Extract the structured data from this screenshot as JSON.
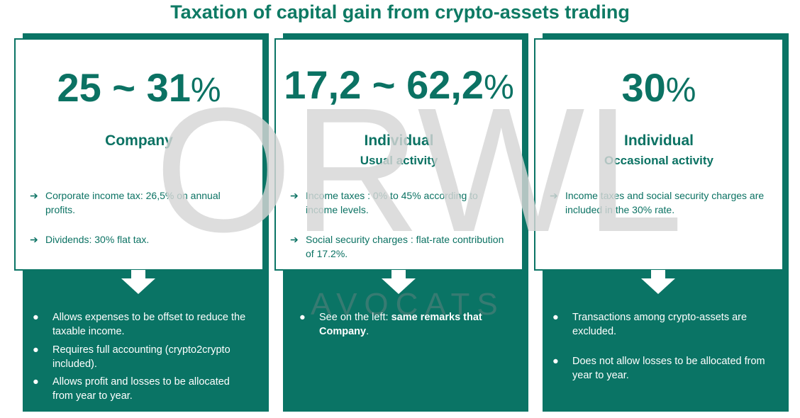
{
  "title": "Taxation of capital gain from crypto-assets trading",
  "colors": {
    "accent": "#0a7465",
    "watermark": "#d6d6d6"
  },
  "watermark": {
    "main": "ORWL",
    "sub": "AVOCATS"
  },
  "columns": [
    {
      "rate": "25 ~ 31",
      "rate_symbol": "%",
      "heading": "Company",
      "subheading": "",
      "card_bullets": [
        {
          "marker": "➔",
          "text": "Corporate income tax: 26,5% on annual profits."
        },
        {
          "marker": "➔",
          "text": "Dividends: 30% flat tax."
        }
      ],
      "bottom_bullets": [
        {
          "marker": "●",
          "text": "Allows expenses to be offset to reduce the taxable income."
        },
        {
          "marker": "●",
          "text": "Requires full accounting (crypto2crypto included)."
        },
        {
          "marker": "●",
          "text": "Allows profit and losses to be allocated from year to year."
        }
      ]
    },
    {
      "rate": "17,2 ~ 62,2",
      "rate_symbol": "%",
      "heading": "Individual",
      "subheading": "Usual activity",
      "card_bullets": [
        {
          "marker": "➔",
          "text": "Income taxes : 0% to 45% according to income levels."
        },
        {
          "marker": "➔",
          "text": "Social security charges : flat-rate contribution of 17.2%."
        }
      ],
      "bottom_bullets": [
        {
          "marker": "●",
          "text_plain": "See on the left: ",
          "text_bold": "same remarks that Company",
          "text_end": "."
        }
      ]
    },
    {
      "rate": "30",
      "rate_symbol": "%",
      "heading": "Individual",
      "subheading": "Occasional activity",
      "card_bullets": [
        {
          "marker": "➔",
          "text": "Income taxes and social security charges are included in the 30% rate."
        }
      ],
      "bottom_bullets": [
        {
          "marker": "●",
          "text": "Transactions among crypto-assets are excluded."
        },
        {
          "marker": "●",
          "text": "Does not allow losses to be allocated from year to year."
        }
      ]
    }
  ]
}
